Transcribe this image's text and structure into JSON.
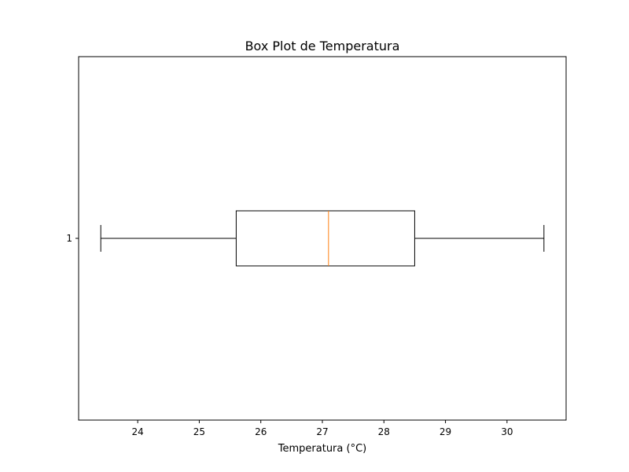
{
  "chart_data": {
    "type": "box",
    "orientation": "horizontal",
    "title": "Box Plot de Temperatura",
    "xlabel": "Temperatura (°C)",
    "ylabel": "",
    "xlim": [
      23.04,
      30.96
    ],
    "xticks": [
      24,
      25,
      26,
      27,
      28,
      29,
      30
    ],
    "xtick_labels": [
      "24",
      "25",
      "26",
      "27",
      "28",
      "29",
      "30"
    ],
    "grid": false,
    "categories": [
      "1"
    ],
    "boxes": [
      {
        "category": "1",
        "whisker_low": 23.4,
        "q1": 25.6,
        "median": 27.1,
        "q3": 28.5,
        "whisker_high": 30.6
      }
    ],
    "colors": {
      "box": "#000000",
      "median": "#ff7f0e",
      "axes": "#000000"
    }
  }
}
